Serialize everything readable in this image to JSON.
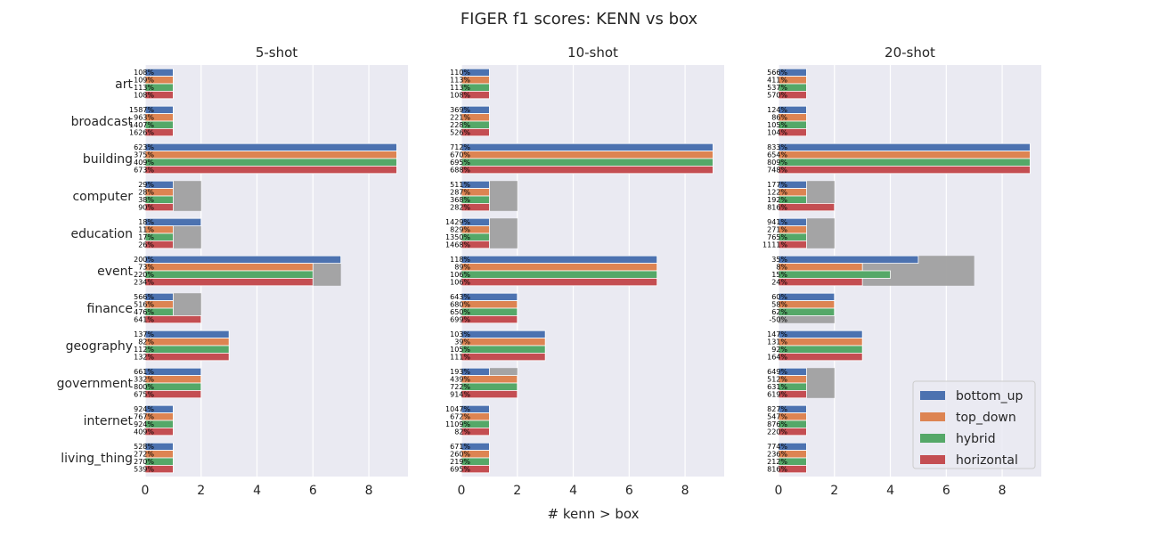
{
  "chart_data": {
    "type": "bar",
    "orientation": "horizontal",
    "title": "FIGER f1 scores: KENN vs box",
    "xlabel": "# kenn > box",
    "xlim": [
      0,
      9.4
    ],
    "xticks": [
      0,
      2,
      4,
      6,
      8
    ],
    "grid": true,
    "legend_position": "lower-right",
    "legend": [
      {
        "name": "bottom_up",
        "color": "#4c72b0"
      },
      {
        "name": "top_down",
        "color": "#dd8452"
      },
      {
        "name": "hybrid",
        "color": "#55a868"
      },
      {
        "name": "horizontal",
        "color": "#c44e52"
      }
    ],
    "gray_color": "#a0a0a0",
    "categories": [
      "art",
      "broadcast",
      "building",
      "computer",
      "education",
      "event",
      "finance",
      "geography",
      "government",
      "internet",
      "living_thing"
    ],
    "panels": [
      {
        "title": "5-shot",
        "gray": [
          null,
          null,
          null,
          2,
          2,
          7,
          2,
          null,
          null,
          null,
          null
        ],
        "series": [
          {
            "name": "bottom_up",
            "values": [
              1,
              1,
              9,
              1,
              2,
              7,
              1,
              3,
              2,
              1,
              1
            ],
            "labels": [
              "108%",
              "1587%",
              "623%",
              "29%",
              "18%",
              "200%",
              "566%",
              "137%",
              "661%",
              "924%",
              "528%"
            ]
          },
          {
            "name": "top_down",
            "values": [
              1,
              1,
              9,
              1,
              1,
              6,
              1,
              3,
              2,
              1,
              1
            ],
            "labels": [
              "109%",
              "963%",
              "375%",
              "28%",
              "11%",
              "73%",
              "516%",
              "82%",
              "332%",
              "767%",
              "272%"
            ]
          },
          {
            "name": "hybrid",
            "values": [
              1,
              1,
              9,
              1,
              1,
              6,
              1,
              3,
              2,
              1,
              1
            ],
            "labels": [
              "113%",
              "1407%",
              "409%",
              "38%",
              "17%",
              "220%",
              "476%",
              "112%",
              "800%",
              "924%",
              "270%"
            ]
          },
          {
            "name": "horizontal",
            "values": [
              1,
              1,
              9,
              1,
              1,
              6,
              2,
              3,
              2,
              1,
              1
            ],
            "labels": [
              "108%",
              "1626%",
              "673%",
              "90%",
              "26%",
              "234%",
              "641%",
              "132%",
              "675%",
              "409%",
              "539%"
            ]
          }
        ]
      },
      {
        "title": "10-shot",
        "gray": [
          null,
          null,
          null,
          2,
          2,
          null,
          null,
          null,
          2,
          null,
          null
        ],
        "series": [
          {
            "name": "bottom_up",
            "values": [
              1,
              1,
              9,
              1,
              1,
              7,
              2,
              3,
              1,
              1,
              1
            ],
            "labels": [
              "110%",
              "369%",
              "712%",
              "511%",
              "1429%",
              "118%",
              "643%",
              "103%",
              "193%",
              "1047%",
              "671%"
            ]
          },
          {
            "name": "top_down",
            "values": [
              1,
              1,
              9,
              1,
              1,
              7,
              2,
              3,
              2,
              1,
              1
            ],
            "labels": [
              "113%",
              "221%",
              "670%",
              "287%",
              "829%",
              "89%",
              "680%",
              "39%",
              "439%",
              "672%",
              "260%"
            ]
          },
          {
            "name": "hybrid",
            "values": [
              1,
              1,
              9,
              1,
              1,
              7,
              2,
              3,
              2,
              1,
              1
            ],
            "labels": [
              "113%",
              "228%",
              "695%",
              "368%",
              "1350%",
              "106%",
              "650%",
              "105%",
              "722%",
              "1109%",
              "219%"
            ]
          },
          {
            "name": "horizontal",
            "values": [
              1,
              1,
              9,
              1,
              1,
              7,
              2,
              3,
              2,
              1,
              1
            ],
            "labels": [
              "108%",
              "526%",
              "688%",
              "282%",
              "1468%",
              "106%",
              "699%",
              "111%",
              "914%",
              "82%",
              "695%"
            ]
          }
        ]
      },
      {
        "title": "20-shot",
        "gray": [
          null,
          null,
          null,
          2,
          2,
          7,
          2,
          null,
          2,
          null,
          null
        ],
        "series": [
          {
            "name": "bottom_up",
            "values": [
              1,
              1,
              9,
              1,
              1,
              5,
              2,
              3,
              1,
              1,
              1
            ],
            "labels": [
              "566%",
              "124%",
              "833%",
              "177%",
              "941%",
              "35%",
              "60%",
              "147%",
              "649%",
              "827%",
              "774%"
            ]
          },
          {
            "name": "top_down",
            "values": [
              1,
              1,
              9,
              1,
              1,
              3,
              2,
              3,
              1,
              1,
              1
            ],
            "labels": [
              "411%",
              "86%",
              "654%",
              "122%",
              "271%",
              "8%",
              "58%",
              "131%",
              "512%",
              "547%",
              "236%"
            ]
          },
          {
            "name": "hybrid",
            "values": [
              1,
              1,
              9,
              1,
              1,
              4,
              2,
              3,
              1,
              1,
              1
            ],
            "labels": [
              "537%",
              "105%",
              "809%",
              "192%",
              "765%",
              "15%",
              "62%",
              "92%",
              "631%",
              "876%",
              "212%"
            ]
          },
          {
            "name": "horizontal",
            "values": [
              1,
              1,
              9,
              2,
              1,
              3,
              0,
              3,
              1,
              1,
              1
            ],
            "labels": [
              "570%",
              "104%",
              "748%",
              "816%",
              "1111%",
              "24%",
              "-50%",
              "164%",
              "619%",
              "220%",
              "816%"
            ]
          }
        ]
      }
    ]
  }
}
